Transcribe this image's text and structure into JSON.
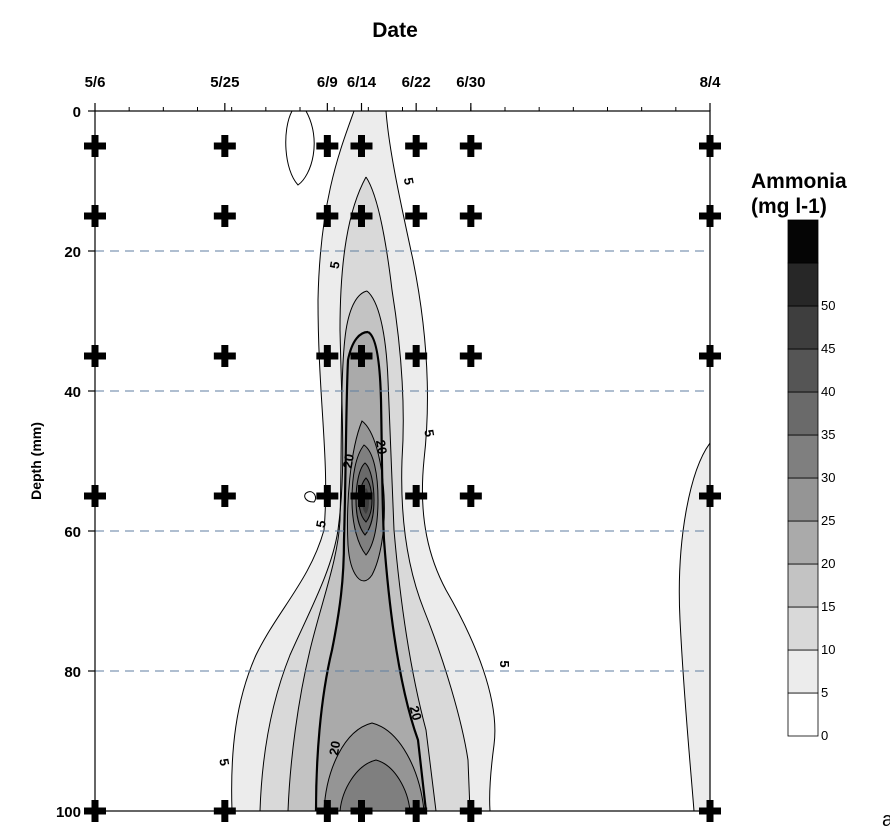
{
  "chart_data": {
    "type": "heatmap",
    "title": "Date",
    "xlabel": "Date",
    "ylabel": "Depth (mm)",
    "x_tick_labels": [
      "5/6",
      "5/25",
      "6/9",
      "6/14",
      "6/22",
      "6/30",
      "8/4"
    ],
    "x_tick_days": [
      0,
      19,
      34,
      39,
      47,
      55,
      90
    ],
    "x_minor_every_days": 5,
    "xlim_days": [
      0,
      90
    ],
    "y_ticks": [
      0,
      20,
      40,
      60,
      80,
      100
    ],
    "ylim": [
      0,
      100
    ],
    "y_inverted": true,
    "grid_lines_dashed_y": [
      20,
      40,
      60,
      80
    ],
    "sample_depths": [
      5,
      15,
      35,
      55,
      100
    ],
    "sample_days": [
      0,
      19,
      34,
      39,
      47,
      55,
      90
    ],
    "colorbar": {
      "title_line1": "Ammonia",
      "title_line2": "(mg l-1)",
      "levels": [
        0,
        5,
        10,
        15,
        20,
        25,
        30,
        35,
        40,
        45,
        50
      ],
      "colors": [
        "#ffffff",
        "#ececec",
        "#d9d9d9",
        "#c3c3c3",
        "#aaaaaa",
        "#959595",
        "#7f7f7f",
        "#6a6a6a",
        "#555555",
        "#3e3e3e",
        "#272727",
        "#050505"
      ]
    },
    "contour_labels": [
      {
        "text": "5",
        "day": 46,
        "depth": 10,
        "rotate": 80
      },
      {
        "text": "5",
        "day": 35,
        "depth": 22,
        "rotate": -80
      },
      {
        "text": "5",
        "day": 49,
        "depth": 46,
        "rotate": 80
      },
      {
        "text": "5",
        "day": 33,
        "depth": 59,
        "rotate": -80
      },
      {
        "text": "5",
        "day": 60,
        "depth": 79,
        "rotate": 90
      },
      {
        "text": "5",
        "day": 19,
        "depth": 93,
        "rotate": 80
      },
      {
        "text": "20",
        "day": 37,
        "depth": 50,
        "rotate": -80
      },
      {
        "text": "20",
        "day": 42,
        "depth": 48,
        "rotate": 80
      },
      {
        "text": "20",
        "day": 35,
        "depth": 91,
        "rotate": -80
      },
      {
        "text": "20",
        "day": 47,
        "depth": 86,
        "rotate": 75
      }
    ],
    "corner_text": "a"
  }
}
